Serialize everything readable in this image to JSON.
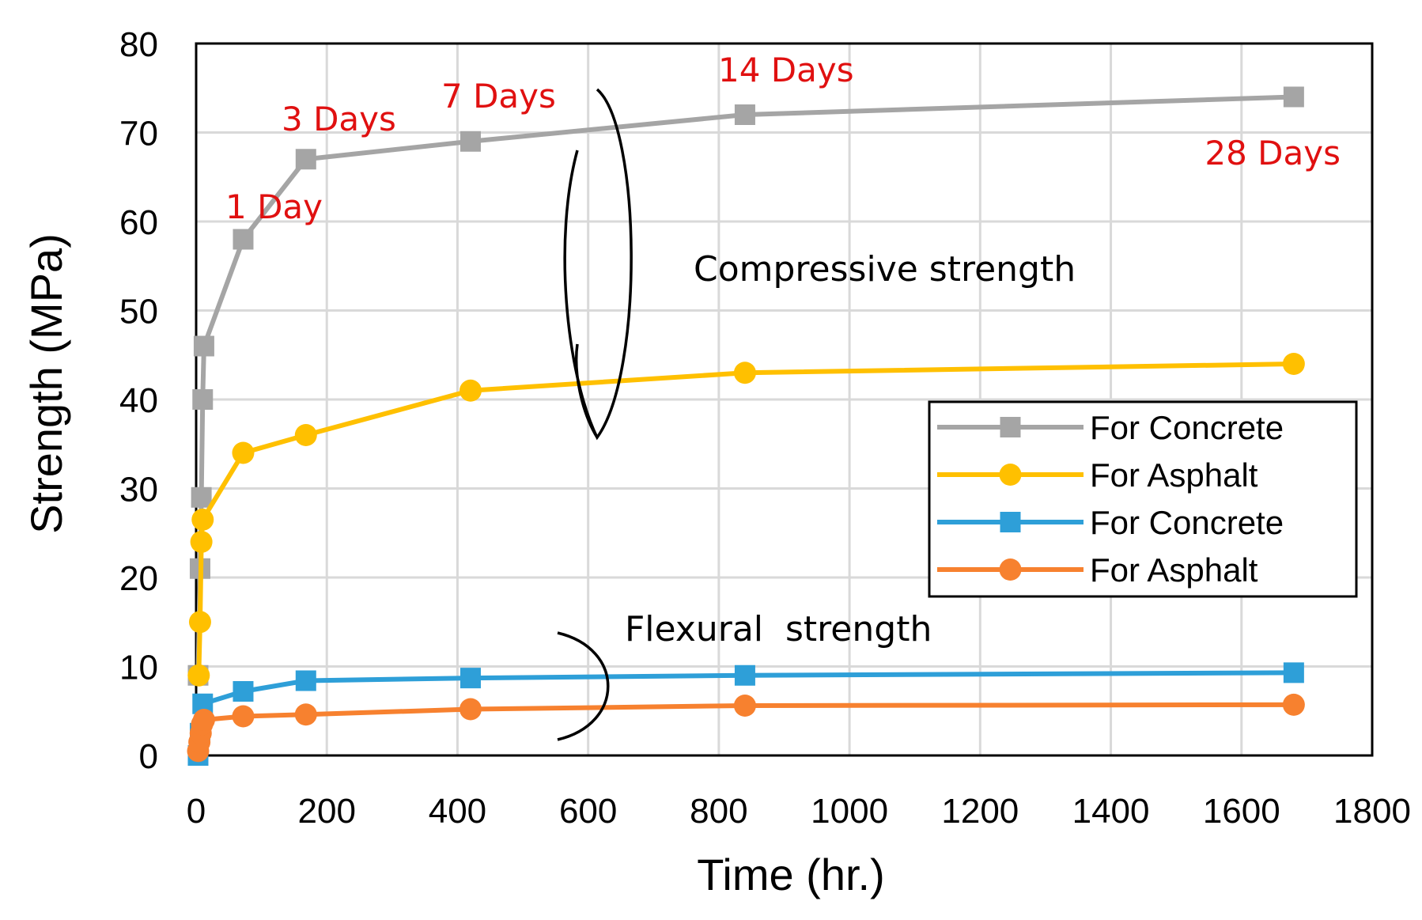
{
  "chart_data": {
    "type": "line",
    "title": "",
    "xlabel": "Time (hr.)",
    "ylabel": "Strength (MPa)",
    "xlim": [
      0,
      1800
    ],
    "ylim": [
      0,
      80
    ],
    "x_ticks": [
      0,
      200,
      400,
      600,
      800,
      1000,
      1200,
      1400,
      1600,
      1800
    ],
    "y_ticks": [
      0,
      10,
      20,
      30,
      40,
      50,
      60,
      70,
      80
    ],
    "grid": true,
    "legend_position": "right",
    "series": [
      {
        "name": "For Concrete",
        "group": "Compressive strength",
        "color": "#a5a5a5",
        "marker": "square",
        "x": [
          3,
          6,
          8,
          10,
          12,
          72,
          168,
          420,
          840,
          1680
        ],
        "y": [
          9,
          21,
          29,
          40,
          46,
          58,
          67,
          69,
          72,
          74
        ]
      },
      {
        "name": "For Asphalt",
        "group": "Compressive strength",
        "color": "#ffc000",
        "marker": "circle",
        "x": [
          4,
          6,
          8,
          10,
          72,
          168,
          420,
          840,
          1680
        ],
        "y": [
          9,
          15,
          24,
          26.5,
          34,
          36,
          41,
          43,
          44
        ]
      },
      {
        "name": "For Concrete",
        "group": "Flexural strength",
        "color": "#2e9fd8",
        "marker": "square",
        "x": [
          3,
          6,
          10,
          72,
          168,
          420,
          840,
          1680
        ],
        "y": [
          0,
          2.5,
          5.8,
          7.2,
          8.4,
          8.7,
          9.0,
          9.3
        ]
      },
      {
        "name": "For Asphalt",
        "group": "Flexural strength",
        "color": "#f7812f",
        "marker": "circle",
        "x": [
          3,
          5,
          7,
          9,
          12,
          72,
          168,
          420,
          840,
          1680
        ],
        "y": [
          0.5,
          1.5,
          2.5,
          3.5,
          4.0,
          4.4,
          4.6,
          5.2,
          5.6,
          5.7
        ]
      }
    ],
    "annotations": [
      {
        "text": "1 Day",
        "x": 24,
        "y": 60
      },
      {
        "text": "3 Days",
        "x": 72,
        "y": 69.6
      },
      {
        "text": "7 Days",
        "x": 168,
        "y": 72.4
      },
      {
        "text": "14 Days",
        "x": 336,
        "y": 75.2
      },
      {
        "text": "28 Days",
        "x": 672,
        "y": 66.4
      }
    ],
    "group_labels": [
      "Compressive strength",
      "Flexural  strength"
    ]
  },
  "legend": {
    "items": [
      "For Concrete",
      "For Asphalt",
      "For Concrete",
      "For Asphalt"
    ]
  }
}
